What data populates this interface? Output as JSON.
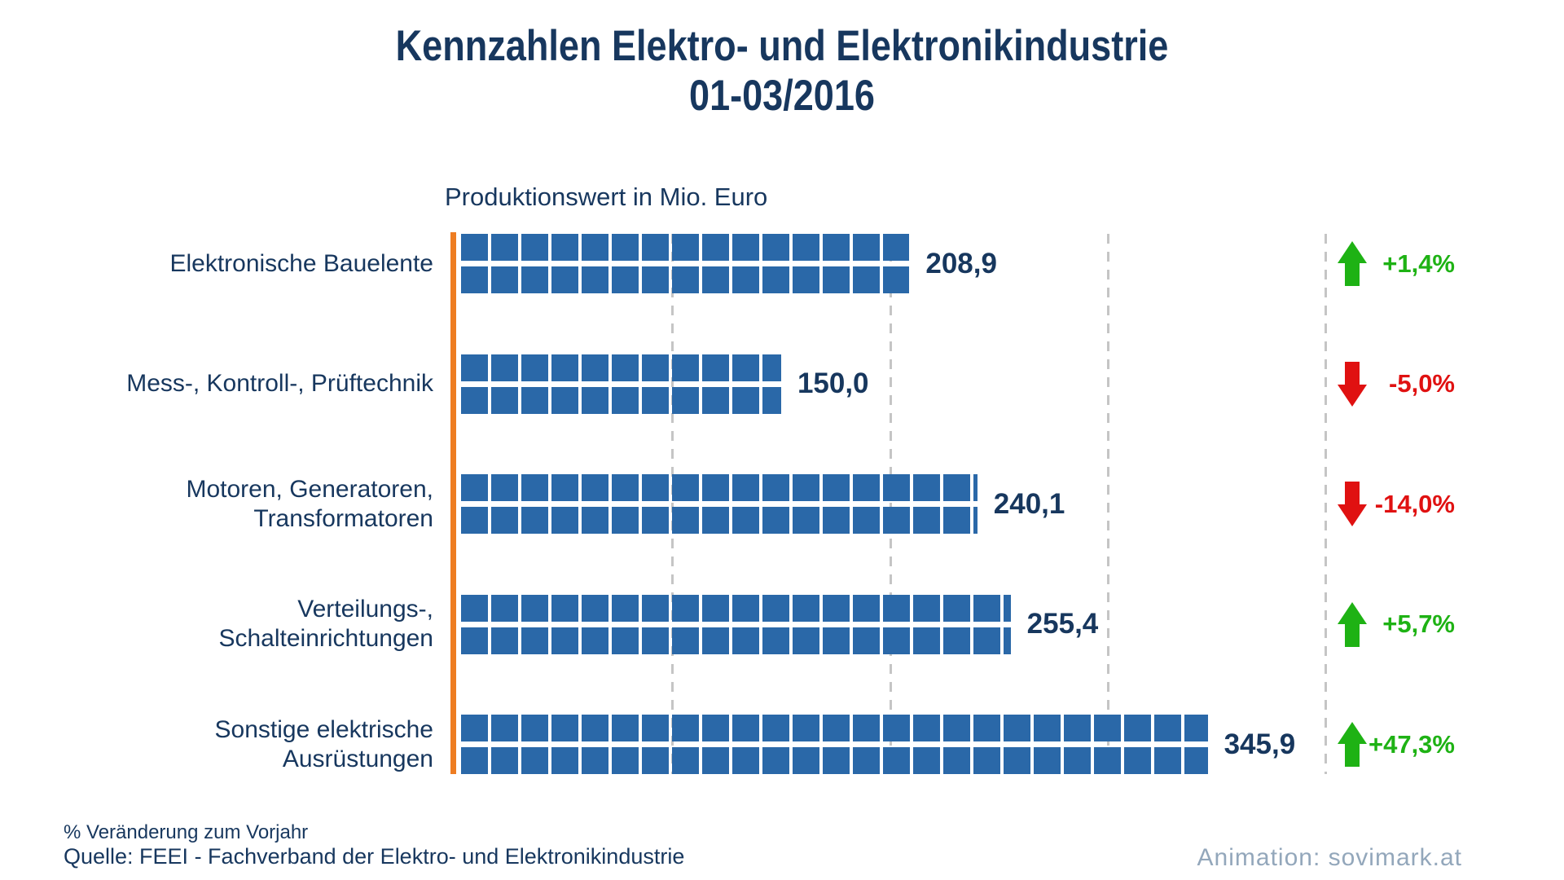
{
  "title": {
    "line1": "Kennzahlen Elektro- und Elektronikindustrie",
    "line2": "01-03/2016"
  },
  "subtitle": "Produktionswert in Mio. Euro",
  "footer": {
    "note": "% Veränderung zum Vorjahr",
    "source": "Quelle: FEEI - Fachverband der Elektro- und Elektronikindustrie",
    "credit": "Animation: sovimark.at"
  },
  "colors": {
    "navy": "#17375E",
    "bar_blue": "#2A68A8",
    "axis_orange": "#EE7D22",
    "up_green": "#1EB214",
    "down_red": "#E01111",
    "grid_gray": "#C5C5C5",
    "credit_gray": "#93A7BB"
  },
  "chart_data": {
    "type": "bar",
    "orientation": "horizontal",
    "title": "Kennzahlen Elektro- und Elektronikindustrie 01-03/2016",
    "xlabel": "Produktionswert in Mio. Euro",
    "ylabel": "",
    "xlim": [
      0,
      400
    ],
    "gridlines_mio_euro": [
      100,
      200,
      300,
      400
    ],
    "grid": true,
    "categories": [
      [
        "Elektronische Bauelente"
      ],
      [
        "Mess-, Kontroll-, Prüftechnik"
      ],
      [
        "Motoren, Generatoren,",
        "Transformatoren"
      ],
      [
        "Verteilungs-,",
        "Schalteinrichtungen"
      ],
      [
        "Sonstige elektrische",
        "Ausrüstungen"
      ]
    ],
    "values": [
      208.9,
      150.0,
      240.1,
      255.4,
      345.9
    ],
    "value_labels": [
      "208,9",
      "150,0",
      "240,1",
      "255,4",
      "345,9"
    ],
    "changes": [
      {
        "label": "+1,4%",
        "direction": "up"
      },
      {
        "label": "-5,0%",
        "direction": "down"
      },
      {
        "label": "-14,0%",
        "direction": "down"
      },
      {
        "label": "+5,7%",
        "direction": "up"
      },
      {
        "label": "+47,3%",
        "direction": "up"
      }
    ],
    "change_note": "% Veränderung zum Vorjahr"
  }
}
